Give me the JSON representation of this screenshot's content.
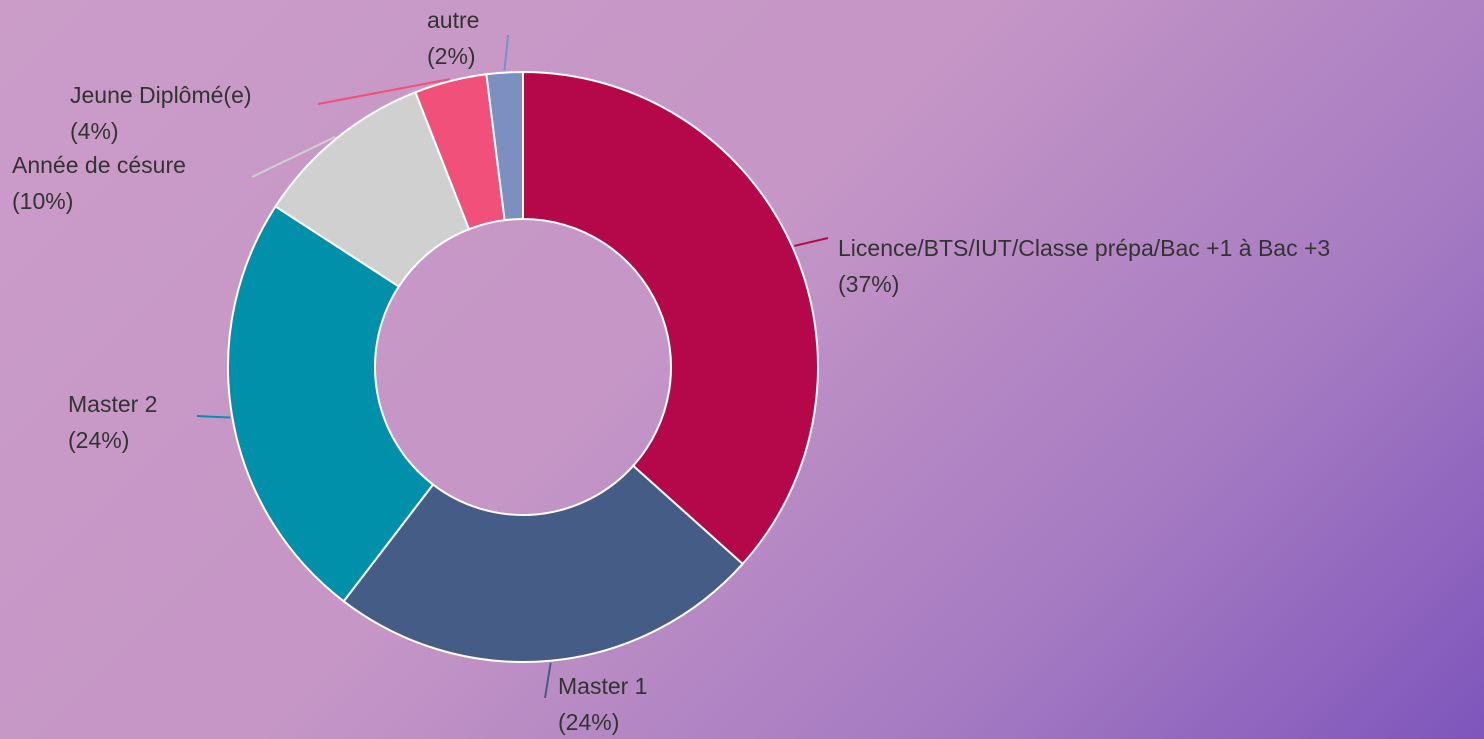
{
  "chart_data": {
    "type": "donut",
    "categories": [
      "Licence/BTS/IUT/Classe prépa/Bac +1 à Bac +3",
      "Master 1",
      "Master 2",
      "Année de césure",
      "Jeune Diplômé(e)",
      "autre"
    ],
    "values": [
      37,
      24,
      24,
      10,
      4,
      2
    ],
    "value_labels": [
      "(37%)",
      "(24%)",
      "(24%)",
      "(10%)",
      "(4%)",
      "(2%)"
    ],
    "colors": [
      "#b5084a",
      "#455c86",
      "#0090aa",
      "#d0d0d0",
      "#f0507a",
      "#7b8fc0"
    ]
  }
}
